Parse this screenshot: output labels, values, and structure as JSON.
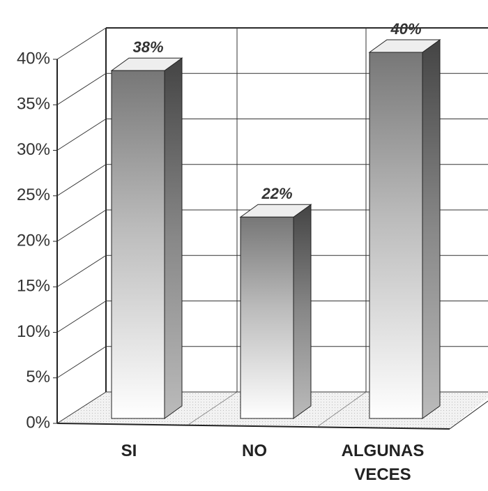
{
  "chart_data": {
    "type": "bar3d",
    "categories": [
      "SI",
      "NO",
      "ALGUNAS VECES"
    ],
    "values": [
      38,
      22,
      40
    ],
    "value_labels": [
      "38%",
      "22%",
      "40%"
    ],
    "ylim": [
      0,
      40
    ],
    "yticks": [
      {
        "value": 0,
        "label": "0%"
      },
      {
        "value": 5,
        "label": "5%"
      },
      {
        "value": 10,
        "label": "10%"
      },
      {
        "value": 15,
        "label": "15%"
      },
      {
        "value": 20,
        "label": "20%"
      },
      {
        "value": 25,
        "label": "25%"
      },
      {
        "value": 30,
        "label": "30%"
      },
      {
        "value": 35,
        "label": "35%"
      },
      {
        "value": 40,
        "label": "40%"
      }
    ],
    "grid": true
  }
}
